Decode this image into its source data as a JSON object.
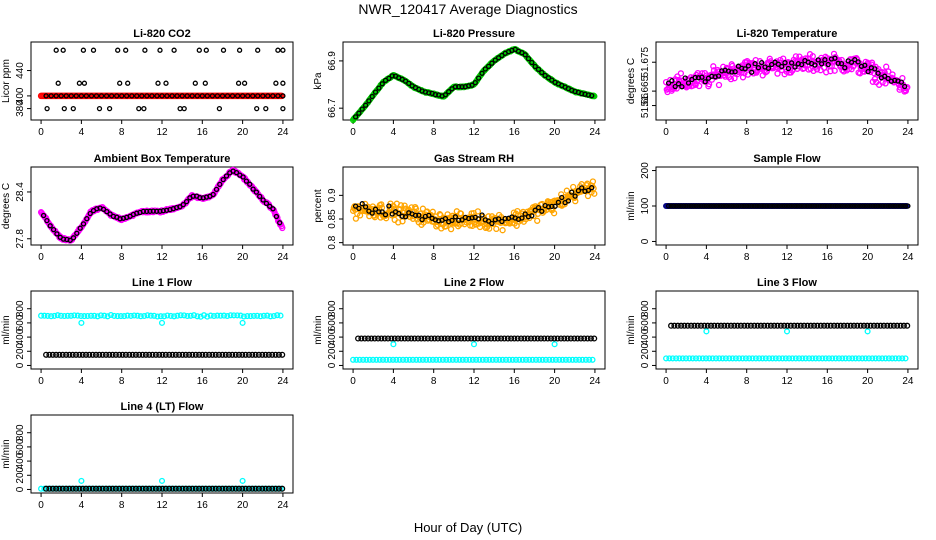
{
  "figure": {
    "title": "NWR_120417  Average Diagnostics",
    "xlabel": "Hour of Day (UTC)"
  },
  "chart_data": [
    {
      "id": "co2",
      "type": "scatter",
      "title": "Li-820 CO2",
      "ylabel": "Licor ppm",
      "xlim": [
        -1,
        25
      ],
      "ylim": [
        362,
        485
      ],
      "yticks": [
        380,
        400,
        440
      ],
      "xticks": [
        0,
        4,
        8,
        12,
        16,
        20,
        24
      ],
      "colors": {
        "fill": "#ff0000",
        "marker": "#000000"
      }
    },
    {
      "id": "press",
      "type": "scatter",
      "title": "Li-820 Pressure",
      "ylabel": "kPa",
      "xlim": [
        -1,
        25
      ],
      "ylim": [
        66.65,
        66.98
      ],
      "yticks": [
        66.7,
        66.9
      ],
      "xticks": [
        0,
        4,
        8,
        12,
        16,
        20,
        24
      ],
      "colors": {
        "fill": "#00cc00",
        "marker": "#000000"
      }
    },
    {
      "id": "temp",
      "type": "scatter",
      "title": "Li-820 Temperature",
      "ylabel": "degrees C",
      "xlim": [
        -1,
        25
      ],
      "ylim": [
        51.655,
        51.682
      ],
      "yticks": [
        51.66,
        51.665,
        51.675
      ],
      "xticks": [
        0,
        4,
        8,
        12,
        16,
        20,
        24
      ],
      "colors": {
        "fill": "#ff00ff",
        "marker": "#000000"
      }
    },
    {
      "id": "ambtemp",
      "type": "scatter",
      "title": "Ambient Box Temperature",
      "ylabel": "degrees C",
      "xlim": [
        -1,
        25
      ],
      "ylim": [
        27.72,
        28.72
      ],
      "yticks": [
        27.8,
        28.4
      ],
      "xticks": [
        0,
        4,
        8,
        12,
        16,
        20,
        24
      ],
      "colors": {
        "fill": "#ff00ff",
        "marker": "#000000"
      }
    },
    {
      "id": "rh",
      "type": "scatter",
      "title": "Gas Stream RH",
      "ylabel": "percent",
      "xlim": [
        -1,
        25
      ],
      "ylim": [
        0.795,
        0.96
      ],
      "yticks": [
        0.8,
        0.85,
        0.9
      ],
      "xticks": [
        0,
        4,
        8,
        12,
        16,
        20,
        24
      ],
      "colors": {
        "fill": "#ffa500",
        "marker": "#000000"
      }
    },
    {
      "id": "sflow",
      "type": "scatter",
      "title": "Sample Flow",
      "ylabel": "ml/min",
      "xlim": [
        -1,
        25
      ],
      "ylim": [
        -10,
        210
      ],
      "yticks": [
        0,
        100,
        200
      ],
      "xticks": [
        0,
        4,
        8,
        12,
        16,
        20,
        24
      ],
      "colors": {
        "fill": "#00ffff",
        "marker": "#000000"
      }
    },
    {
      "id": "line1",
      "type": "scatter",
      "title": "Line 1 Flow",
      "ylabel": "ml/min",
      "xlim": [
        -1,
        25
      ],
      "ylim": [
        -50,
        1050
      ],
      "yticks": [
        0,
        200,
        400,
        600,
        800
      ],
      "xticks": [
        0,
        4,
        8,
        12,
        16,
        20,
        24
      ],
      "series": [
        {
          "color": "#00ffff",
          "value": 700
        },
        {
          "color": "#000000",
          "value": 150
        }
      ]
    },
    {
      "id": "line2",
      "type": "scatter",
      "title": "Line 2 Flow",
      "ylabel": "ml/min",
      "xlim": [
        -1,
        25
      ],
      "ylim": [
        -50,
        1050
      ],
      "yticks": [
        0,
        200,
        400,
        600,
        800
      ],
      "xticks": [
        0,
        4,
        8,
        12,
        16,
        20,
        24
      ],
      "series": [
        {
          "color": "#00ffff",
          "value": 80
        },
        {
          "color": "#000000",
          "value": 380
        }
      ]
    },
    {
      "id": "line3",
      "type": "scatter",
      "title": "Line 3 Flow",
      "ylabel": "ml/min",
      "xlim": [
        -1,
        25
      ],
      "ylim": [
        -50,
        1050
      ],
      "yticks": [
        0,
        200,
        400,
        600,
        800
      ],
      "xticks": [
        0,
        4,
        8,
        12,
        16,
        20,
        24
      ],
      "series": [
        {
          "color": "#00ffff",
          "value": 100
        },
        {
          "color": "#000000",
          "value": 560
        }
      ]
    },
    {
      "id": "line4",
      "type": "scatter",
      "title": "Line 4 (LT) Flow",
      "ylabel": "ml/min",
      "xlim": [
        -1,
        25
      ],
      "ylim": [
        -50,
        1050
      ],
      "yticks": [
        0,
        200,
        400,
        600,
        800
      ],
      "xticks": [
        0,
        4,
        8,
        12,
        16,
        20,
        24
      ],
      "series": [
        {
          "color": "#00ffff",
          "value": 10
        },
        {
          "color": "#000000",
          "value": 10
        }
      ]
    }
  ]
}
